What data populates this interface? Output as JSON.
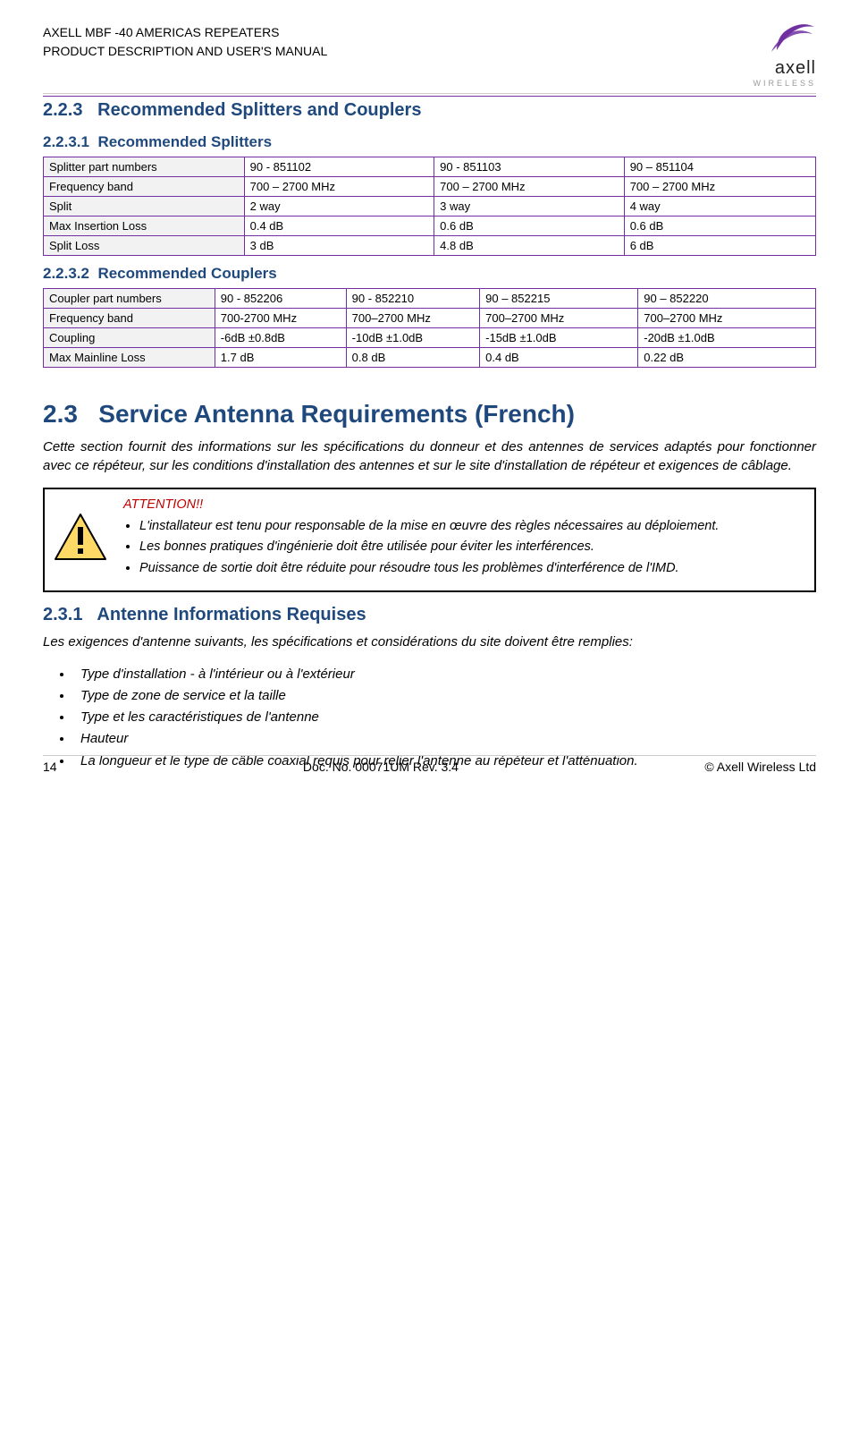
{
  "header": {
    "line1": "AXELL MBF -40 AMERICAS REPEATERS",
    "line2": "PRODUCT DESCRIPTION AND USER'S MANUAL",
    "logo_name": "axell",
    "logo_sub": "WIRELESS",
    "logo_stroke": "#7030a0"
  },
  "s223": {
    "num": "2.2.3",
    "title": "Recommended Splitters and Couplers"
  },
  "s2231": {
    "num": "2.2.3.1",
    "title": "Recommended Splitters"
  },
  "splitters": {
    "hdr": [
      "Splitter part numbers",
      "90 - 851102",
      "90 - 851103",
      "90 – 851104"
    ],
    "rows": [
      [
        "Frequency band",
        "700 – 2700 MHz",
        "700 – 2700 MHz",
        "700 – 2700 MHz"
      ],
      [
        "Split",
        "2 way",
        "3 way",
        "4 way"
      ],
      [
        "Max Insertion Loss",
        "0.4 dB",
        "0.6 dB",
        "0.6 dB"
      ],
      [
        "Split Loss",
        "3 dB",
        "4.8 dB",
        "6 dB"
      ]
    ],
    "col_widths": [
      "26%",
      "24.6%",
      "24.6%",
      "24.8%"
    ]
  },
  "s2232": {
    "num": "2.2.3.2",
    "title": "Recommended Couplers"
  },
  "couplers": {
    "hdr": [
      "Coupler part numbers",
      "90 - 852206",
      "90 - 852210",
      "90 – 852215",
      "90 – 852220"
    ],
    "rows": [
      [
        "Frequency band",
        "700-2700 MHz",
        "700–2700 MHz",
        "700–2700 MHz",
        "700–2700 MHz"
      ],
      [
        "Coupling",
        "-6dB ±0.8dB",
        "-10dB ±1.0dB",
        "-15dB ±1.0dB",
        "-20dB ±1.0dB"
      ],
      [
        "Max Mainline Loss",
        "1.7 dB",
        "0.8 dB",
        "0.4 dB",
        "0.22 dB"
      ]
    ],
    "col_widths": [
      "22.2%",
      "17%",
      "17.3%",
      "20.5%",
      "23%"
    ]
  },
  "s23": {
    "num": "2.3",
    "title": "Service Antenna Requirements (French)",
    "intro": "Cette section fournit des informations sur les spécifications du donneur et des antennes de services adaptés pour fonctionner avec ce répéteur, sur les conditions d'installation des antennes et sur le site d'installation de répéteur et exigences de câblage."
  },
  "warning": {
    "title": "ATTENTION!!",
    "icon_fill": "#ffd966",
    "icon_stroke": "#000000",
    "bullets": [
      "L'installateur est tenu pour responsable de la mise en œuvre des règles nécessaires au déploiement.",
      " Les bonnes pratiques d'ingénierie doit être utilisée pour éviter les interférences.",
      "Puissance de sortie doit être réduite pour résoudre tous les problèmes d'interférence de l'IMD."
    ]
  },
  "s231": {
    "num": "2.3.1",
    "title": "Antenne Informations Requises",
    "intro": "Les exigences d'antenne suivants, les spécifications et considérations du site doivent être remplies:",
    "items": [
      "Type d'installation - à l'intérieur ou à l'extérieur",
      "Type de zone de service et la taille",
      "Type et les caractéristiques de l'antenne",
      "Hauteur",
      "La longueur et le type de câble coaxial requis pour relier l'antenne au répéteur et l'atténuation."
    ]
  },
  "footer": {
    "page": "14",
    "center": "Doc. No. 00071UM Rev. 3.4",
    "right": "© Axell Wireless Ltd"
  }
}
